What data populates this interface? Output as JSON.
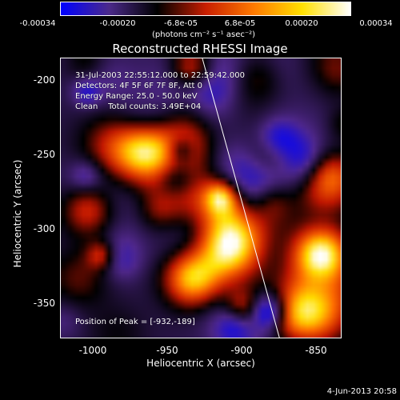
{
  "colorbar": {
    "ticks": [
      "-0.00034",
      "-0.00020",
      "-6.8e-05",
      "6.8e-05",
      "0.00020",
      "0.00034"
    ],
    "units": "(photons cm⁻² s⁻¹ asec⁻²)",
    "colors": [
      "#0000ff",
      "#4b2a8a",
      "#000000",
      "#c81e00",
      "#ff7a00",
      "#ffe000",
      "#ffffff"
    ]
  },
  "title": "Reconstructed RHESSI Image",
  "info": {
    "line1": "31-Jul-2003 22:55:12.000 to 22:59:42.000",
    "line2": "Detectors: 4F 5F 6F 7F 8F, Att 0",
    "line3": "Energy Range: 25.0 - 50.0 keV",
    "line4": "Clean    Total counts: 3.49E+04"
  },
  "peak_text": "Position of Peak = [-932,-189]",
  "chart_data": {
    "type": "heatmap",
    "title": "Reconstructed RHESSI Image",
    "xlabel": "Heliocentric X (arcsec)",
    "ylabel": "Heliocentric Y (arcsec)",
    "xlim": [
      -1016,
      -827
    ],
    "ylim": [
      -375,
      -186
    ],
    "x_ticks": [
      "-1000",
      "-950",
      "-900",
      "-850"
    ],
    "y_ticks": [
      "-200",
      "-250",
      "-300",
      "-350"
    ],
    "x_tick_values": [
      -1000,
      -950,
      -900,
      -850
    ],
    "y_tick_values": [
      -200,
      -250,
      -300,
      -350
    ],
    "color_range": [
      -0.00034,
      0.00034
    ],
    "peak_position": [
      -932,
      -189
    ],
    "limb_line": [
      [
        -921,
        -186
      ],
      [
        -869,
        -375
      ]
    ]
  },
  "footer_date": "4-Jun-2013 20:58"
}
